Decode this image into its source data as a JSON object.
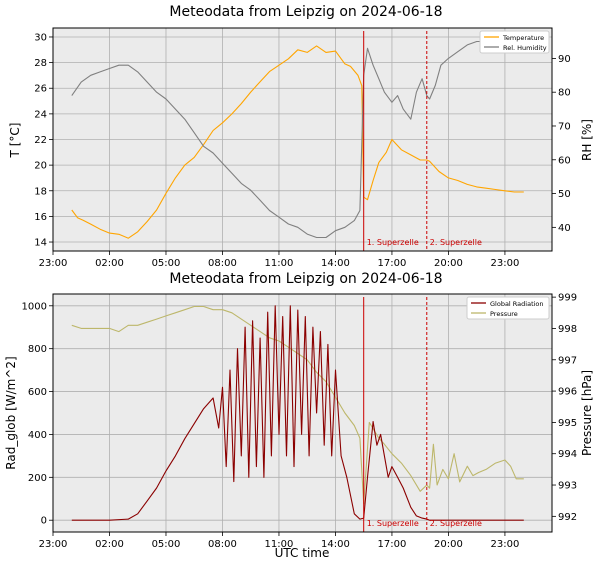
{
  "chart_data": [
    {
      "type": "line",
      "title": "Meteodata from Leipzig on 2024-06-18",
      "xlabel": "",
      "ylabel": "T [°C]",
      "y2label": "RH [%]",
      "x_unit": "hours UTC relative to 2024-06-18 00:00",
      "xlim": [
        -1,
        25.5
      ],
      "ylim": [
        13.3,
        30.7
      ],
      "y2lim": [
        33,
        99
      ],
      "xticks": [
        "23:00",
        "02:00",
        "05:00",
        "08:00",
        "11:00",
        "14:00",
        "17:00",
        "20:00",
        "23:00"
      ],
      "xtick_values": [
        -1,
        2,
        5,
        8,
        11,
        14,
        17,
        20,
        23
      ],
      "yticks": [
        14,
        16,
        18,
        20,
        22,
        24,
        26,
        28,
        30
      ],
      "y2ticks": [
        40,
        50,
        60,
        70,
        80,
        90
      ],
      "grid": true,
      "legend": "top-right",
      "events": [
        {
          "label": "1. Superzelle",
          "x": 15.5,
          "style": "solid"
        },
        {
          "label": "2. Superzelle",
          "x": 18.85,
          "style": "dashed"
        }
      ],
      "series": [
        {
          "name": "Temperature",
          "axis": "left",
          "color": "#ffa500",
          "x": [
            0,
            0.3,
            0.6,
            1.0,
            1.5,
            2.0,
            2.5,
            3.0,
            3.5,
            4.0,
            4.5,
            5.0,
            5.5,
            6.0,
            6.5,
            7.0,
            7.5,
            8.0,
            8.5,
            9.0,
            9.5,
            10.0,
            10.5,
            11.0,
            11.5,
            12.0,
            12.5,
            13.0,
            13.5,
            14.0,
            14.5,
            14.8,
            15.2,
            15.4,
            15.5,
            15.7,
            16.0,
            16.3,
            16.7,
            17.0,
            17.5,
            18.0,
            18.5,
            18.85,
            19.0,
            19.5,
            20.0,
            20.5,
            21.0,
            21.5,
            22.0,
            22.5,
            23.0,
            23.5,
            24.0
          ],
          "y": [
            16.5,
            15.9,
            15.7,
            15.4,
            15.0,
            14.7,
            14.6,
            14.3,
            14.8,
            15.6,
            16.5,
            17.8,
            19.0,
            20.0,
            20.6,
            21.6,
            22.7,
            23.3,
            24.0,
            24.8,
            25.7,
            26.5,
            27.3,
            27.8,
            28.3,
            29.0,
            28.8,
            29.3,
            28.8,
            28.9,
            27.9,
            27.7,
            27.0,
            26.2,
            17.5,
            17.3,
            18.8,
            20.2,
            21.0,
            22.0,
            21.2,
            20.8,
            20.4,
            20.4,
            20.3,
            19.5,
            19.0,
            18.8,
            18.5,
            18.3,
            18.2,
            18.1,
            18.0,
            17.9,
            17.9
          ]
        },
        {
          "name": "Rel. Humidity",
          "axis": "right",
          "color": "#808080",
          "x": [
            0,
            0.5,
            1.0,
            1.5,
            2.0,
            2.5,
            3.0,
            3.5,
            4.0,
            4.5,
            5.0,
            5.5,
            6.0,
            6.5,
            7.0,
            7.5,
            8.0,
            8.5,
            9.0,
            9.5,
            10.0,
            10.5,
            11.0,
            11.5,
            12.0,
            12.5,
            13.0,
            13.5,
            14.0,
            14.5,
            15.0,
            15.3,
            15.5,
            15.7,
            16.0,
            16.3,
            16.6,
            17.0,
            17.3,
            17.6,
            18.0,
            18.3,
            18.6,
            18.85,
            19.0,
            19.3,
            19.6,
            20.0,
            20.5,
            21.0,
            21.5,
            22.0
          ],
          "y": [
            79,
            83,
            85,
            86,
            87,
            88,
            88,
            86,
            83,
            80,
            78,
            75,
            72,
            68,
            64,
            62,
            59,
            56,
            53,
            51,
            48,
            45,
            43,
            41,
            40,
            38,
            37,
            37,
            39,
            40,
            42,
            45,
            85,
            93,
            88,
            84,
            80,
            77,
            79,
            75,
            72,
            80,
            84,
            79,
            78,
            82,
            88,
            90,
            92,
            94,
            95,
            95
          ]
        }
      ]
    },
    {
      "type": "line",
      "title": "Meteodata from Leipzig on 2024-06-18",
      "xlabel": "UTC time",
      "ylabel": "Rad_glob [W/m^2]",
      "y2label": "Pressure [hPa]",
      "x_unit": "hours UTC relative to 2024-06-18 00:00",
      "xlim": [
        -1,
        25.5
      ],
      "ylim": [
        -55,
        1055
      ],
      "y2lim": [
        991.5,
        999.1
      ],
      "xticks": [
        "23:00",
        "02:00",
        "05:00",
        "08:00",
        "11:00",
        "14:00",
        "17:00",
        "20:00",
        "23:00"
      ],
      "xtick_values": [
        -1,
        2,
        5,
        8,
        11,
        14,
        17,
        20,
        23
      ],
      "yticks": [
        0,
        200,
        400,
        600,
        800,
        1000
      ],
      "y2ticks": [
        992,
        993,
        994,
        995,
        996,
        997,
        998,
        999
      ],
      "grid": true,
      "legend": "top-right",
      "events": [
        {
          "label": "1. Superzelle",
          "x": 15.5,
          "style": "solid"
        },
        {
          "label": "2. Superzelle",
          "x": 18.85,
          "style": "dashed"
        }
      ],
      "series": [
        {
          "name": "Global Radiation",
          "axis": "left",
          "color": "#8b0000",
          "x": [
            0,
            1.0,
            2.0,
            3.0,
            3.5,
            4.0,
            4.5,
            5.0,
            5.5,
            6.0,
            6.5,
            7.0,
            7.5,
            7.8,
            8.0,
            8.2,
            8.4,
            8.6,
            8.8,
            9.0,
            9.2,
            9.4,
            9.6,
            9.8,
            10.0,
            10.2,
            10.4,
            10.6,
            10.8,
            11.0,
            11.2,
            11.4,
            11.6,
            11.8,
            12.0,
            12.2,
            12.4,
            12.6,
            12.8,
            13.0,
            13.2,
            13.4,
            13.6,
            13.8,
            14.0,
            14.3,
            14.6,
            15.0,
            15.3,
            15.5,
            15.7,
            16.0,
            16.2,
            16.4,
            16.6,
            16.8,
            17.0,
            17.3,
            17.6,
            18.0,
            18.3,
            18.6,
            18.85,
            19.0,
            20.0,
            21.0,
            22.0,
            23.0,
            24.0
          ],
          "y": [
            0,
            0,
            0,
            5,
            30,
            90,
            150,
            230,
            300,
            380,
            450,
            520,
            570,
            430,
            620,
            250,
            700,
            180,
            800,
            300,
            900,
            200,
            930,
            250,
            850,
            200,
            970,
            300,
            1000,
            400,
            950,
            300,
            1000,
            250,
            980,
            400,
            950,
            300,
            900,
            500,
            880,
            350,
            820,
            300,
            700,
            300,
            200,
            30,
            5,
            10,
            200,
            460,
            350,
            400,
            300,
            200,
            250,
            200,
            150,
            60,
            20,
            10,
            5,
            0,
            0,
            0,
            0,
            0,
            0
          ]
        },
        {
          "name": "Pressure",
          "axis": "right",
          "color": "#bdb76b",
          "x": [
            0,
            0.5,
            1.0,
            1.5,
            2.0,
            2.5,
            3.0,
            3.5,
            4.0,
            4.5,
            5.0,
            5.5,
            6.0,
            6.5,
            7.0,
            7.5,
            8.0,
            8.5,
            9.0,
            9.5,
            10.0,
            10.5,
            11.0,
            11.5,
            12.0,
            12.5,
            13.0,
            13.5,
            14.0,
            14.5,
            15.0,
            15.3,
            15.5,
            15.8,
            16.0,
            16.3,
            16.6,
            17.0,
            17.5,
            18.0,
            18.5,
            18.85,
            19.0,
            19.2,
            19.4,
            19.7,
            20.0,
            20.3,
            20.6,
            21.0,
            21.3,
            21.6,
            22.0,
            22.5,
            23.0,
            23.3,
            23.6,
            24.0
          ],
          "y": [
            998.1,
            998.0,
            998.0,
            998.0,
            998.0,
            997.9,
            998.1,
            998.1,
            998.2,
            998.3,
            998.4,
            998.5,
            998.6,
            998.7,
            998.7,
            998.6,
            998.6,
            998.5,
            998.3,
            998.1,
            997.9,
            997.7,
            997.6,
            997.4,
            997.2,
            997.0,
            996.6,
            996.3,
            995.8,
            995.3,
            994.9,
            994.5,
            992.4,
            995.0,
            994.8,
            994.5,
            994.3,
            994.0,
            993.7,
            993.3,
            992.8,
            993.0,
            992.9,
            994.3,
            993.0,
            993.5,
            993.2,
            994.0,
            993.1,
            993.6,
            993.3,
            993.4,
            993.5,
            993.7,
            993.8,
            993.6,
            993.2,
            993.2
          ]
        }
      ]
    }
  ]
}
